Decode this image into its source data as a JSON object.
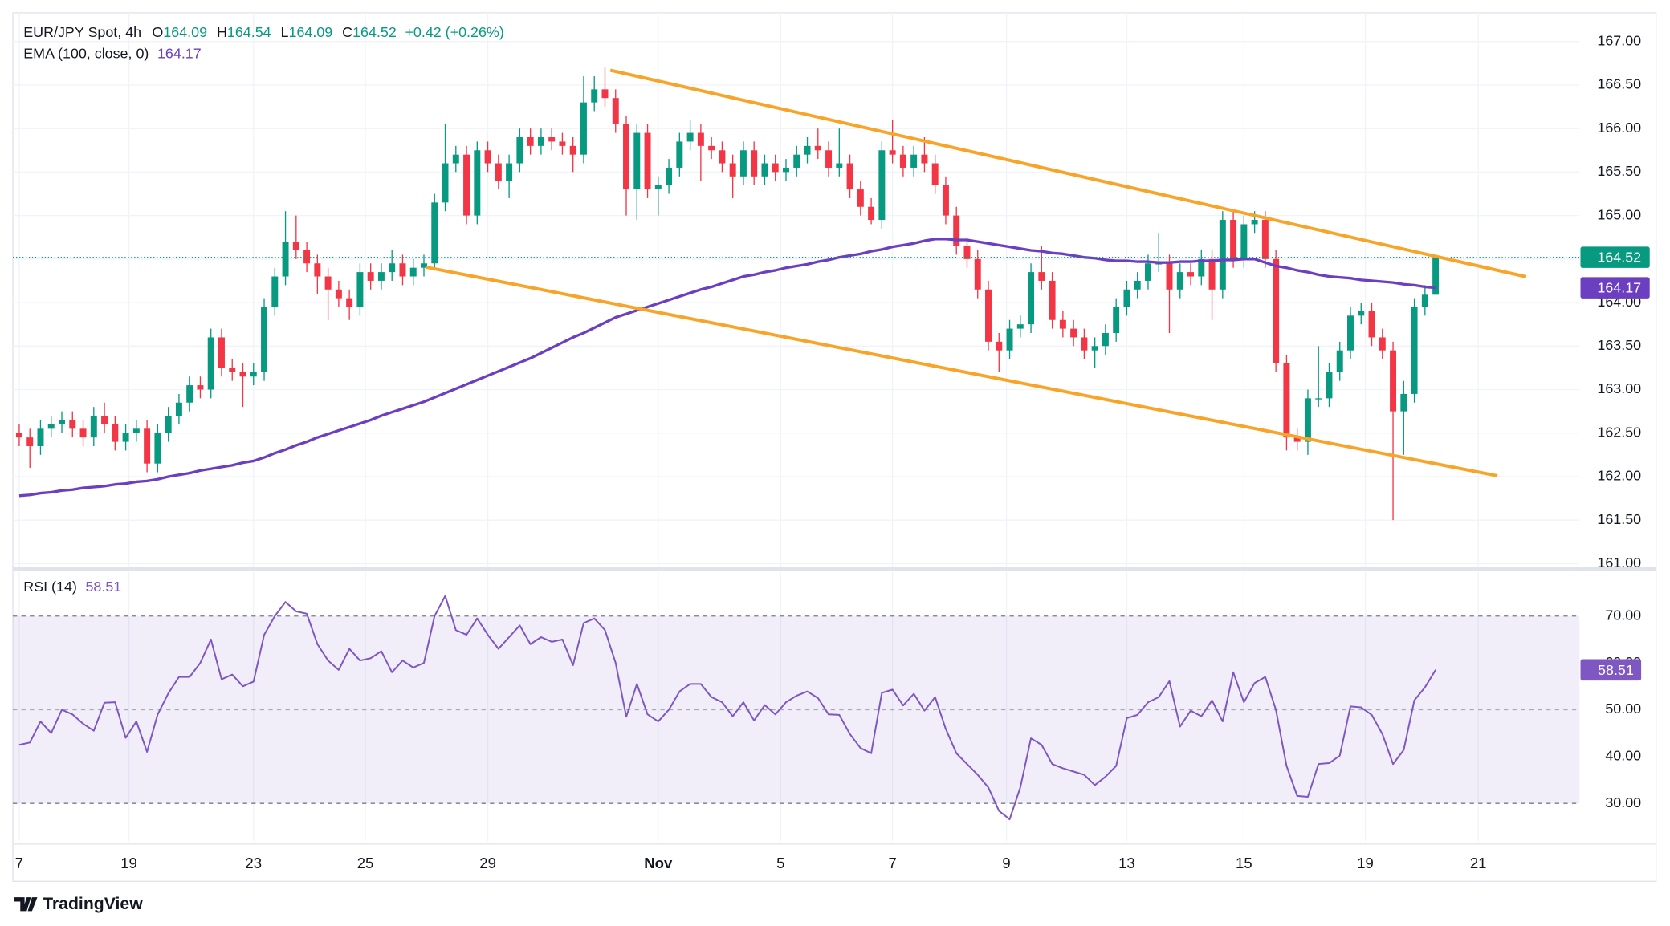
{
  "brand": "TradingView",
  "chart_data": [
    {
      "type": "candlestick",
      "title": "EUR/JPY Spot, 4h",
      "ohlc_labels": [
        "O",
        "H",
        "L",
        "C"
      ],
      "change": "+0.42 (+0.26%)",
      "up_color": "#089981",
      "down_color": "#f23645",
      "grid": true,
      "last_price_line": true,
      "ylim": [
        160.97,
        167.33
      ],
      "yticks": [
        {
          "value": 161,
          "label": "161.00"
        },
        {
          "value": 161.5,
          "label": "161.50"
        },
        {
          "value": 162,
          "label": "162.00"
        },
        {
          "value": 162.5,
          "label": "162.50"
        },
        {
          "value": 163,
          "label": "163.00"
        },
        {
          "value": 163.5,
          "label": "163.50"
        },
        {
          "value": 164,
          "label": "164.00"
        },
        {
          "value": 164.5,
          "label": "164.50"
        },
        {
          "value": 165,
          "label": "165.00"
        },
        {
          "value": 165.5,
          "label": "165.50"
        },
        {
          "value": 166,
          "label": "166.00"
        },
        {
          "value": 166.5,
          "label": "166.50"
        },
        {
          "value": 167,
          "label": "167.00"
        }
      ],
      "xlim": [
        -0.6,
        146.5
      ],
      "xticks": [
        {
          "value": 0,
          "label": "7"
        },
        {
          "value": 10.3,
          "label": "19"
        },
        {
          "value": 22,
          "label": "23"
        },
        {
          "value": 32.5,
          "label": "25"
        },
        {
          "value": 44,
          "label": "29"
        },
        {
          "value": 60,
          "label": "Nov"
        },
        {
          "value": 71.5,
          "label": "5"
        },
        {
          "value": 82,
          "label": "7"
        },
        {
          "value": 92.7,
          "label": "9"
        },
        {
          "value": 104,
          "label": "13"
        },
        {
          "value": 115,
          "label": "15"
        },
        {
          "value": 126.4,
          "label": "19"
        },
        {
          "value": 137,
          "label": "21"
        }
      ],
      "open": [
        162.5,
        162.45,
        162.35,
        162.55,
        162.6,
        162.65,
        162.55,
        162.45,
        162.7,
        162.6,
        162.4,
        162.5,
        162.55,
        162.15,
        162.5,
        162.7,
        162.85,
        163.05,
        163.0,
        163.6,
        163.25,
        163.2,
        163.15,
        163.2,
        163.95,
        164.3,
        164.7,
        164.6,
        164.45,
        164.3,
        164.15,
        164.05,
        163.95,
        164.35,
        164.25,
        164.35,
        164.45,
        164.3,
        164.4,
        164.45,
        165.15,
        165.6,
        165.7,
        165.0,
        165.75,
        165.6,
        165.4,
        165.6,
        165.9,
        165.8,
        165.9,
        165.85,
        165.8,
        165.7,
        166.3,
        166.45,
        166.35,
        166.05,
        165.3,
        165.95,
        165.3,
        165.35,
        165.55,
        165.85,
        165.95,
        165.8,
        165.75,
        165.6,
        165.45,
        165.75,
        165.45,
        165.6,
        165.5,
        165.55,
        165.7,
        165.8,
        165.75,
        165.55,
        165.6,
        165.3,
        165.1,
        164.95,
        165.75,
        165.7,
        165.55,
        165.7,
        165.6,
        165.35,
        165.0,
        164.65,
        164.5,
        164.15,
        163.55,
        163.45,
        163.7,
        163.75,
        164.35,
        164.25,
        163.8,
        163.7,
        163.6,
        163.45,
        163.5,
        163.65,
        163.95,
        164.15,
        164.25,
        164.45,
        164.45,
        164.15,
        164.35,
        164.3,
        164.5,
        164.15,
        164.95,
        164.5,
        164.9,
        164.95,
        164.5,
        163.3,
        162.45,
        162.4,
        162.9,
        162.9,
        163.2,
        163.45,
        163.85,
        163.9,
        163.6,
        163.45,
        162.75,
        162.95,
        163.95,
        164.09
      ],
      "high": [
        162.6,
        162.55,
        162.65,
        162.7,
        162.75,
        162.75,
        162.65,
        162.8,
        162.85,
        162.7,
        162.6,
        162.65,
        162.65,
        162.6,
        162.8,
        162.95,
        163.15,
        163.15,
        163.7,
        163.7,
        163.35,
        163.3,
        163.3,
        164.05,
        164.4,
        165.05,
        165.0,
        164.7,
        164.55,
        164.4,
        164.25,
        164.15,
        164.45,
        164.45,
        164.45,
        164.6,
        164.55,
        164.5,
        164.55,
        165.25,
        166.05,
        165.8,
        165.8,
        165.85,
        165.85,
        165.7,
        165.7,
        166.0,
        166.0,
        166.0,
        166.0,
        165.95,
        165.9,
        166.6,
        166.6,
        166.7,
        166.45,
        166.15,
        166.05,
        166.05,
        165.45,
        165.65,
        165.95,
        166.1,
        166.05,
        165.9,
        165.85,
        165.7,
        165.85,
        165.85,
        165.7,
        165.7,
        165.65,
        165.8,
        165.9,
        166.0,
        165.85,
        166.0,
        165.7,
        165.4,
        165.2,
        165.85,
        166.1,
        165.8,
        165.8,
        165.9,
        165.7,
        165.45,
        165.1,
        164.75,
        164.6,
        164.25,
        163.65,
        163.8,
        163.85,
        164.45,
        164.65,
        164.35,
        163.9,
        163.8,
        163.7,
        163.6,
        163.75,
        164.05,
        164.25,
        164.35,
        164.55,
        164.8,
        164.55,
        164.45,
        164.45,
        164.6,
        164.6,
        165.05,
        165.05,
        165.0,
        165.05,
        165.05,
        164.6,
        163.4,
        162.55,
        163.0,
        163.5,
        163.3,
        163.55,
        163.95,
        164.0,
        164.0,
        163.7,
        163.55,
        163.1,
        164.05,
        164.2,
        164.54
      ],
      "low": [
        162.35,
        162.1,
        162.25,
        162.45,
        162.5,
        162.45,
        162.35,
        162.35,
        162.5,
        162.3,
        162.3,
        162.4,
        162.05,
        162.05,
        162.4,
        162.6,
        162.75,
        162.9,
        162.9,
        163.15,
        163.1,
        162.8,
        163.05,
        163.1,
        163.85,
        164.2,
        164.5,
        164.35,
        164.1,
        163.8,
        163.95,
        163.8,
        163.85,
        164.15,
        164.15,
        164.25,
        164.2,
        164.2,
        164.3,
        164.4,
        165.05,
        165.5,
        164.9,
        164.9,
        165.5,
        165.3,
        165.2,
        165.5,
        165.7,
        165.7,
        165.75,
        165.7,
        165.5,
        165.6,
        166.2,
        166.25,
        165.95,
        165.0,
        164.95,
        165.2,
        165.0,
        165.25,
        165.45,
        165.75,
        165.4,
        165.65,
        165.5,
        165.2,
        165.35,
        165.35,
        165.35,
        165.4,
        165.4,
        165.45,
        165.6,
        165.65,
        165.45,
        165.45,
        165.2,
        165.0,
        164.9,
        164.85,
        165.6,
        165.45,
        165.45,
        165.5,
        165.25,
        164.9,
        164.55,
        164.4,
        164.05,
        163.45,
        163.2,
        163.35,
        163.6,
        163.65,
        164.15,
        163.7,
        163.6,
        163.5,
        163.35,
        163.25,
        163.4,
        163.55,
        163.85,
        164.05,
        164.15,
        164.35,
        163.65,
        164.05,
        164.2,
        164.2,
        163.8,
        164.05,
        164.4,
        164.4,
        164.8,
        164.4,
        163.2,
        162.3,
        162.3,
        162.25,
        162.8,
        162.8,
        163.1,
        163.35,
        163.75,
        163.5,
        163.35,
        161.5,
        162.25,
        162.85,
        163.85,
        164.09
      ],
      "close": [
        162.45,
        162.35,
        162.55,
        162.6,
        162.65,
        162.55,
        162.45,
        162.7,
        162.6,
        162.4,
        162.5,
        162.55,
        162.15,
        162.5,
        162.7,
        162.85,
        163.05,
        163.0,
        163.6,
        163.25,
        163.2,
        163.15,
        163.2,
        163.95,
        164.3,
        164.7,
        164.6,
        164.45,
        164.3,
        164.15,
        164.05,
        163.95,
        164.35,
        164.25,
        164.35,
        164.45,
        164.3,
        164.4,
        164.45,
        165.15,
        165.6,
        165.7,
        165.0,
        165.75,
        165.6,
        165.4,
        165.6,
        165.9,
        165.8,
        165.9,
        165.85,
        165.8,
        165.7,
        166.3,
        166.45,
        166.35,
        166.05,
        165.3,
        165.95,
        165.3,
        165.35,
        165.55,
        165.85,
        165.95,
        165.8,
        165.75,
        165.6,
        165.45,
        165.75,
        165.45,
        165.6,
        165.5,
        165.55,
        165.7,
        165.8,
        165.75,
        165.55,
        165.6,
        165.3,
        165.1,
        164.95,
        165.75,
        165.7,
        165.55,
        165.7,
        165.6,
        165.35,
        165.0,
        164.65,
        164.5,
        164.15,
        163.55,
        163.45,
        163.7,
        163.75,
        164.35,
        164.25,
        163.8,
        163.7,
        163.6,
        163.45,
        163.5,
        163.65,
        163.95,
        164.15,
        164.25,
        164.45,
        164.45,
        164.15,
        164.35,
        164.3,
        164.5,
        164.15,
        164.95,
        164.5,
        164.9,
        164.95,
        164.5,
        163.3,
        162.45,
        162.4,
        162.9,
        162.9,
        163.2,
        163.45,
        163.85,
        163.9,
        163.6,
        163.45,
        162.75,
        162.95,
        163.95,
        164.09,
        164.52
      ],
      "series": [
        {
          "name": "EMA (100, close, 0)",
          "color": "#6b3fbf",
          "values": [
            161.78,
            161.79,
            161.81,
            161.82,
            161.84,
            161.85,
            161.87,
            161.88,
            161.89,
            161.91,
            161.92,
            161.94,
            161.95,
            161.97,
            162.0,
            162.02,
            162.04,
            162.07,
            162.09,
            162.11,
            162.13,
            162.16,
            162.18,
            162.22,
            162.27,
            162.31,
            162.36,
            162.4,
            162.45,
            162.49,
            162.53,
            162.57,
            162.61,
            162.65,
            162.7,
            162.74,
            162.78,
            162.82,
            162.86,
            162.91,
            162.96,
            163.01,
            163.06,
            163.11,
            163.16,
            163.21,
            163.26,
            163.31,
            163.36,
            163.42,
            163.48,
            163.54,
            163.6,
            163.65,
            163.71,
            163.77,
            163.83,
            163.87,
            163.91,
            163.95,
            163.99,
            164.03,
            164.07,
            164.11,
            164.15,
            164.18,
            164.22,
            164.26,
            164.3,
            164.32,
            164.35,
            164.37,
            164.4,
            164.42,
            164.44,
            164.47,
            164.49,
            164.52,
            164.54,
            164.56,
            164.59,
            164.61,
            164.64,
            164.66,
            164.68,
            164.71,
            164.73,
            164.73,
            164.72,
            164.72,
            164.7,
            164.68,
            164.66,
            164.64,
            164.62,
            164.6,
            164.59,
            164.57,
            164.56,
            164.54,
            164.52,
            164.51,
            164.49,
            164.48,
            164.48,
            164.47,
            164.47,
            164.46,
            164.46,
            164.47,
            164.47,
            164.48,
            164.48,
            164.49,
            164.49,
            164.5,
            164.5,
            164.46,
            164.42,
            164.4,
            164.37,
            164.35,
            164.32,
            164.3,
            164.29,
            164.28,
            164.26,
            164.25,
            164.24,
            164.23,
            164.21,
            164.2,
            164.18,
            164.17
          ]
        }
      ]
    },
    {
      "type": "line",
      "band_color": "#7e57c2",
      "ylim": [
        22,
        79.5
      ],
      "yticks": [
        {
          "value": 30,
          "label": "30.00"
        },
        {
          "value": 40,
          "label": "40.00"
        },
        {
          "value": 50,
          "label": "50.00"
        },
        {
          "value": 60,
          "label": "60.00"
        },
        {
          "value": 70,
          "label": "70.00"
        }
      ],
      "band": [
        30,
        70
      ],
      "midline": 50,
      "series": [
        {
          "name": "RSI (14)",
          "color": "#7e57c2",
          "values": [
            42.5,
            43,
            47.5,
            45,
            50,
            49,
            47,
            45.5,
            51.5,
            51.6,
            44,
            47.5,
            41,
            49,
            53.5,
            57,
            57,
            60,
            65,
            56.5,
            57.5,
            55,
            56,
            66,
            70,
            73,
            71,
            70.5,
            64,
            60.5,
            58.5,
            63,
            60.5,
            61,
            62.5,
            58,
            60.5,
            59,
            60,
            70,
            74.3,
            67,
            66,
            69.5,
            66,
            63,
            65.5,
            68,
            64,
            65.5,
            64.5,
            65,
            59.5,
            68.5,
            69.5,
            67,
            60,
            48.5,
            55.5,
            49,
            47.5,
            50,
            53.9,
            55.5,
            55.5,
            52.7,
            51.6,
            48.6,
            51.6,
            47.7,
            51,
            49,
            51.6,
            53,
            53.9,
            52.5,
            49,
            48.9,
            44.8,
            41.8,
            40.7,
            53.6,
            54.3,
            50.9,
            53.4,
            49.8,
            52.7,
            45.9,
            40.7,
            38.4,
            36.1,
            33.4,
            28.4,
            26.6,
            33.4,
            43.9,
            42.5,
            38.4,
            37.5,
            36.8,
            36.1,
            33.9,
            35.7,
            38,
            48.2,
            48.9,
            51.6,
            52.7,
            56.1,
            46.4,
            49.8,
            48.6,
            52,
            47.5,
            58,
            51.6,
            55.7,
            57,
            50,
            38,
            31.6,
            31.4,
            38.4,
            38.6,
            40.2,
            50.7,
            50.5,
            48.9,
            44.8,
            38.4,
            41.4,
            52,
            54.8,
            58.51
          ]
        }
      ]
    }
  ]
}
